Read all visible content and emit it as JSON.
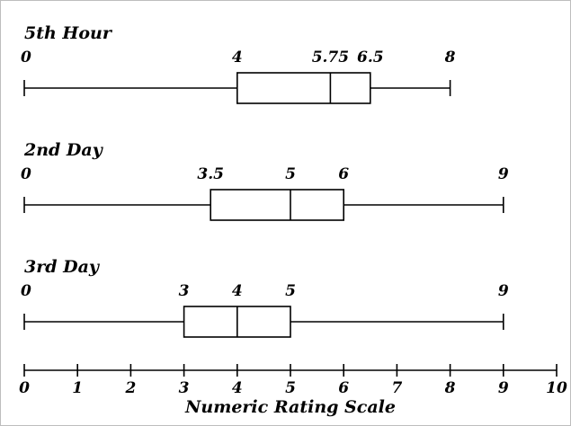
{
  "chart_data": {
    "type": "boxplot",
    "orientation": "horizontal",
    "xlabel": "Numeric Rating Scale",
    "xlim": [
      0,
      10
    ],
    "x_ticks": [
      0,
      1,
      2,
      3,
      4,
      5,
      6,
      7,
      8,
      9,
      10
    ],
    "x_tick_labels": [
      "0",
      "1",
      "2",
      "3",
      "4",
      "5",
      "6",
      "7",
      "8",
      "9",
      "10"
    ],
    "grid": false,
    "series": [
      {
        "name": "5th Hour",
        "min": 0,
        "q1": 4,
        "median": 5.75,
        "q3": 6.5,
        "max": 8,
        "value_labels": [
          "0",
          "4",
          "5.75",
          "6.5",
          "8"
        ]
      },
      {
        "name": "2nd Day",
        "min": 0,
        "q1": 3.5,
        "median": 5,
        "q3": 6,
        "max": 9,
        "value_labels": [
          "0",
          "3.5",
          "5",
          "6",
          "9"
        ]
      },
      {
        "name": "3rd Day",
        "min": 0,
        "q1": 3,
        "median": 4,
        "q3": 5,
        "max": 9,
        "value_labels": [
          "0",
          "3",
          "4",
          "5",
          "9"
        ]
      }
    ],
    "colors": {
      "line": "#000000",
      "box_fill": "#ffffff",
      "background": "#ffffff"
    }
  }
}
